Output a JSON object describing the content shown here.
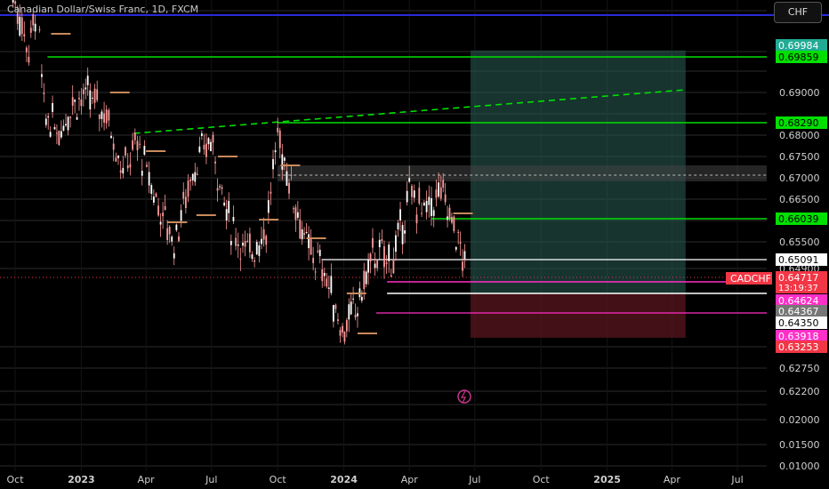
{
  "header": {
    "title": "Canadian Dollar/Swiss Franc, 1D, FXCM",
    "currency_button": "CHF"
  },
  "colors": {
    "background": "#000000",
    "grid": "#2b2b2b",
    "candles": "#ff9a9a",
    "green_level": "#00e000",
    "pink_level": "#ff2fc7",
    "white_level": "#ffffff",
    "target_zone": "#2a5e55",
    "stop_zone": "#5b1520",
    "blue_line": "#2a2ad8",
    "price_tag": "#f23645"
  },
  "chart_data": {
    "type": "candlestick",
    "symbol": "CADCHF",
    "timeframe": "1D",
    "source": "FXCM",
    "x_ticks": [
      "Oct",
      "2023",
      "Apr",
      "Jul",
      "Oct",
      "2024",
      "Apr",
      "Jul",
      "Oct",
      "2025",
      "Apr",
      "Jul"
    ],
    "y_ticks": [
      "0.69000",
      "0.68000",
      "0.67500",
      "0.67000",
      "0.66500",
      "0.65500",
      "0.64900",
      "0.62750",
      "0.62200",
      "0.02000",
      "0.01500",
      "0.01000"
    ],
    "price_trace": [
      [
        "2022-09-25",
        0.715
      ],
      [
        "2022-10-20",
        0.7
      ],
      [
        "2022-11-01",
        0.712
      ],
      [
        "2022-11-10",
        0.685
      ],
      [
        "2022-12-01",
        0.681
      ],
      [
        "2022-12-20",
        0.688
      ],
      [
        "2023-01-10",
        0.689
      ],
      [
        "2023-02-05",
        0.685
      ],
      [
        "2023-02-28",
        0.672
      ],
      [
        "2023-03-20",
        0.678
      ],
      [
        "2023-04-15",
        0.665
      ],
      [
        "2023-05-10",
        0.655
      ],
      [
        "2023-06-05",
        0.672
      ],
      [
        "2023-06-30",
        0.679
      ],
      [
        "2023-07-25",
        0.66
      ],
      [
        "2023-08-20",
        0.652
      ],
      [
        "2023-09-15",
        0.658
      ],
      [
        "2023-10-01",
        0.68
      ],
      [
        "2023-10-20",
        0.668
      ],
      [
        "2023-11-10",
        0.654
      ],
      [
        "2023-12-05",
        0.648
      ],
      [
        "2023-12-30",
        0.634
      ],
      [
        "2024-01-20",
        0.64
      ],
      [
        "2024-02-10",
        0.652
      ],
      [
        "2024-03-10",
        0.651
      ],
      [
        "2024-04-01",
        0.666
      ],
      [
        "2024-04-25",
        0.662
      ],
      [
        "2024-05-15",
        0.667
      ],
      [
        "2024-06-05",
        0.657
      ],
      [
        "2024-06-20",
        0.64717
      ]
    ],
    "horizontal_levels": [
      {
        "label": "0.69984",
        "kind": "target-top",
        "tag_color": "#22ab94"
      },
      {
        "label": "0.69859",
        "kind": "green",
        "tag_color": "#00e000"
      },
      {
        "label": "0.68290",
        "kind": "green",
        "tag_color": "#00e000"
      },
      {
        "label": "0.66039",
        "kind": "green",
        "tag_color": "#00e000"
      },
      {
        "label": "0.65091",
        "kind": "white",
        "tag_color": "#ffffff"
      },
      {
        "label": "0.64717",
        "kind": "last-price",
        "tag_color": "#f23645"
      },
      {
        "label": "0.64624",
        "kind": "pink",
        "tag_color": "#ff2fc7"
      },
      {
        "label": "0.64367",
        "kind": "grey",
        "tag_color": "#777777"
      },
      {
        "label": "0.64350",
        "kind": "white",
        "tag_color": "#ffffff"
      },
      {
        "label": "0.63918",
        "kind": "pink",
        "tag_color": "#ff2fc7"
      },
      {
        "label": "0.63253",
        "kind": "stop-bottom",
        "tag_color": "#f23645"
      }
    ],
    "symbol_tag": "CADCHF",
    "countdown": "13:19:37",
    "trendline": {
      "style": "dashed",
      "color": "#00e000"
    },
    "position_tool": {
      "target_zone": "0.69984",
      "stop_zone": "0.63253"
    },
    "grid": true
  }
}
